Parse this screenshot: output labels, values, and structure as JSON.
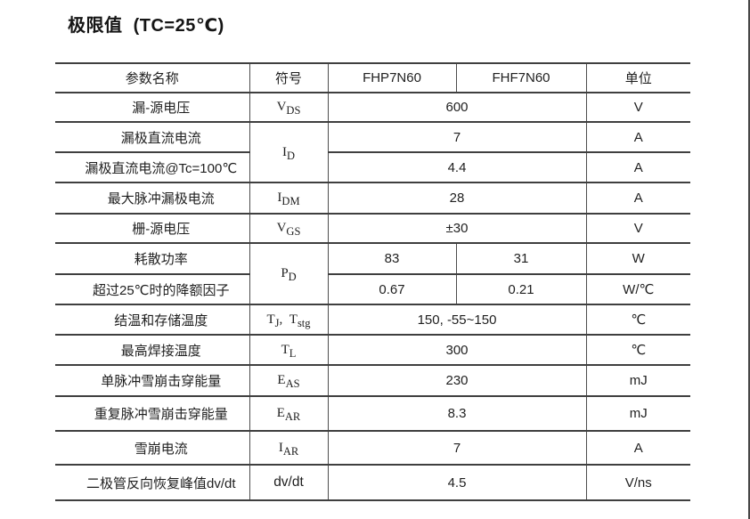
{
  "page": {
    "title": "极限值  (TC=25℃)"
  },
  "table": {
    "columns": [
      "参数名称",
      "符号",
      "FHP7N60",
      "FHF7N60",
      "单位"
    ],
    "rows": [
      {
        "param": "漏-源电压",
        "symbol": {
          "parts": [
            {
              "base": "V",
              "sub": "DS"
            }
          ]
        },
        "values": [
          {
            "text": "600",
            "colspan": 2
          }
        ],
        "unit": "V"
      },
      {
        "param": "漏极直流电流",
        "symbol": {
          "parts": [
            {
              "base": "I",
              "sub": "D"
            }
          ],
          "rowspan": 2
        },
        "values": [
          {
            "text": "7",
            "colspan": 2
          }
        ],
        "unit": "A"
      },
      {
        "param": "漏极直流电流@Tc=100℃",
        "symbol": null,
        "values": [
          {
            "text": "4.4",
            "colspan": 2
          }
        ],
        "unit": "A"
      },
      {
        "param": "最大脉冲漏极电流",
        "symbol": {
          "parts": [
            {
              "base": "I",
              "sub": "DM"
            }
          ]
        },
        "values": [
          {
            "text": "28",
            "colspan": 2
          }
        ],
        "unit": "A"
      },
      {
        "param": "栅-源电压",
        "symbol": {
          "parts": [
            {
              "base": "V",
              "sub": "GS"
            }
          ]
        },
        "values": [
          {
            "text": "±30",
            "colspan": 2
          }
        ],
        "unit": "V"
      },
      {
        "param": "耗散功率",
        "symbol": {
          "parts": [
            {
              "base": "P",
              "sub": "D"
            }
          ],
          "rowspan": 2
        },
        "values": [
          {
            "text": "83",
            "colspan": 1
          },
          {
            "text": "31",
            "colspan": 1
          }
        ],
        "unit": "W"
      },
      {
        "param": "超过25℃时的降额因子",
        "symbol": null,
        "values": [
          {
            "text": "0.67",
            "colspan": 1
          },
          {
            "text": "0.21",
            "colspan": 1
          }
        ],
        "unit": "W/℃"
      },
      {
        "param": "结温和存储温度",
        "symbol": {
          "parts": [
            {
              "base": "T",
              "sub": "J"
            },
            {
              "base": "T",
              "sub": "stg"
            }
          ]
        },
        "values": [
          {
            "text": "150, -55~150",
            "colspan": 2
          }
        ],
        "unit": "℃"
      },
      {
        "param": "最高焊接温度",
        "symbol": {
          "parts": [
            {
              "base": "T",
              "sub": "L"
            }
          ]
        },
        "values": [
          {
            "text": "300",
            "colspan": 2
          }
        ],
        "unit": "℃"
      },
      {
        "param": "单脉冲雪崩击穿能量",
        "symbol": {
          "parts": [
            {
              "base": "E",
              "sub": "AS"
            }
          ]
        },
        "values": [
          {
            "text": "230",
            "colspan": 2
          }
        ],
        "unit": "mJ"
      },
      {
        "param": "重复脉冲雪崩击穿能量",
        "symbol": {
          "parts": [
            {
              "base": "E",
              "sub": "AR"
            }
          ]
        },
        "values": [
          {
            "text": "8.3",
            "colspan": 2
          }
        ],
        "unit": "mJ"
      },
      {
        "param": "雪崩电流",
        "symbol": {
          "parts": [
            {
              "base": "I",
              "sub": "AR"
            }
          ]
        },
        "values": [
          {
            "text": "7",
            "colspan": 2
          }
        ],
        "unit": "A"
      },
      {
        "param": "二极管反向恢复峰值dv/dt",
        "symbol": {
          "text": "dv/dt"
        },
        "values": [
          {
            "text": "4.5",
            "colspan": 2
          }
        ],
        "unit": "V/ns"
      }
    ]
  }
}
